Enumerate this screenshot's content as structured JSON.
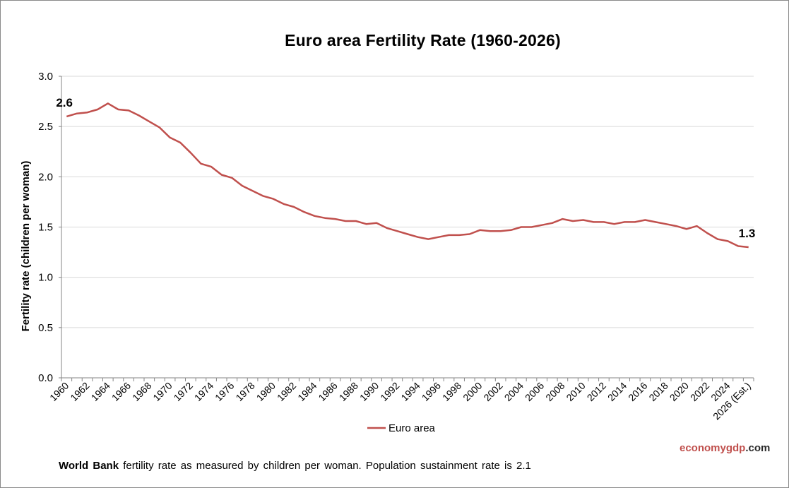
{
  "chart_data": {
    "type": "line",
    "title": "Euro area Fertility  Rate (1960-2026)",
    "xlabel": "",
    "ylabel": "Fertility rate (children per woman)",
    "ylim": [
      0,
      3
    ],
    "yticks": [
      "0.0",
      "0.5",
      "1.0",
      "1.5",
      "2.0",
      "2.5",
      "3.0"
    ],
    "grid": "horizontal",
    "legend_position": "bottom",
    "x": [
      "1960",
      "1961",
      "1962",
      "1963",
      "1964",
      "1965",
      "1966",
      "1967",
      "1968",
      "1969",
      "1970",
      "1971",
      "1972",
      "1973",
      "1974",
      "1975",
      "1976",
      "1977",
      "1978",
      "1979",
      "1980",
      "1981",
      "1982",
      "1983",
      "1984",
      "1985",
      "1986",
      "1987",
      "1988",
      "1989",
      "1990",
      "1991",
      "1992",
      "1993",
      "1994",
      "1995",
      "1996",
      "1997",
      "1998",
      "1999",
      "2000",
      "2001",
      "2002",
      "2003",
      "2004",
      "2005",
      "2006",
      "2007",
      "2008",
      "2009",
      "2010",
      "2011",
      "2012",
      "2013",
      "2014",
      "2015",
      "2016",
      "2017",
      "2018",
      "2019",
      "2020",
      "2021",
      "2022",
      "2023",
      "2024",
      "2025",
      "2026 (Est.)"
    ],
    "x_tick_labels": [
      "1960",
      "1962",
      "1964",
      "1966",
      "1968",
      "1970",
      "1972",
      "1974",
      "1976",
      "1978",
      "1980",
      "1982",
      "1984",
      "1986",
      "1988",
      "1990",
      "1992",
      "1994",
      "1996",
      "1998",
      "2000",
      "2002",
      "2004",
      "2006",
      "2008",
      "2010",
      "2012",
      "2014",
      "2016",
      "2018",
      "2020",
      "2022",
      "2024",
      "2026 (Est.)"
    ],
    "series": [
      {
        "name": "Euro area",
        "color": "#c0504d",
        "values": [
          2.6,
          2.63,
          2.64,
          2.67,
          2.73,
          2.67,
          2.66,
          2.61,
          2.55,
          2.49,
          2.39,
          2.34,
          2.24,
          2.13,
          2.1,
          2.02,
          1.99,
          1.91,
          1.86,
          1.81,
          1.78,
          1.73,
          1.7,
          1.65,
          1.61,
          1.59,
          1.58,
          1.56,
          1.56,
          1.53,
          1.54,
          1.49,
          1.46,
          1.43,
          1.4,
          1.38,
          1.4,
          1.42,
          1.42,
          1.43,
          1.47,
          1.46,
          1.46,
          1.47,
          1.5,
          1.5,
          1.52,
          1.54,
          1.58,
          1.56,
          1.57,
          1.55,
          1.55,
          1.53,
          1.55,
          1.55,
          1.57,
          1.55,
          1.53,
          1.51,
          1.48,
          1.51,
          1.44,
          1.38,
          1.36,
          1.31,
          1.3
        ]
      }
    ],
    "annotations": [
      {
        "text": "2.6",
        "x": "1960"
      },
      {
        "text": "1.3",
        "x": "2026 (Est.)"
      }
    ]
  },
  "brand": {
    "part1": "economy",
    "part2": "gdp",
    "part3": ".com"
  },
  "footer": {
    "bold": "World Bank",
    "text": " fertility rate as measured by children per woman.  Population  sustainment  rate is 2.1"
  }
}
